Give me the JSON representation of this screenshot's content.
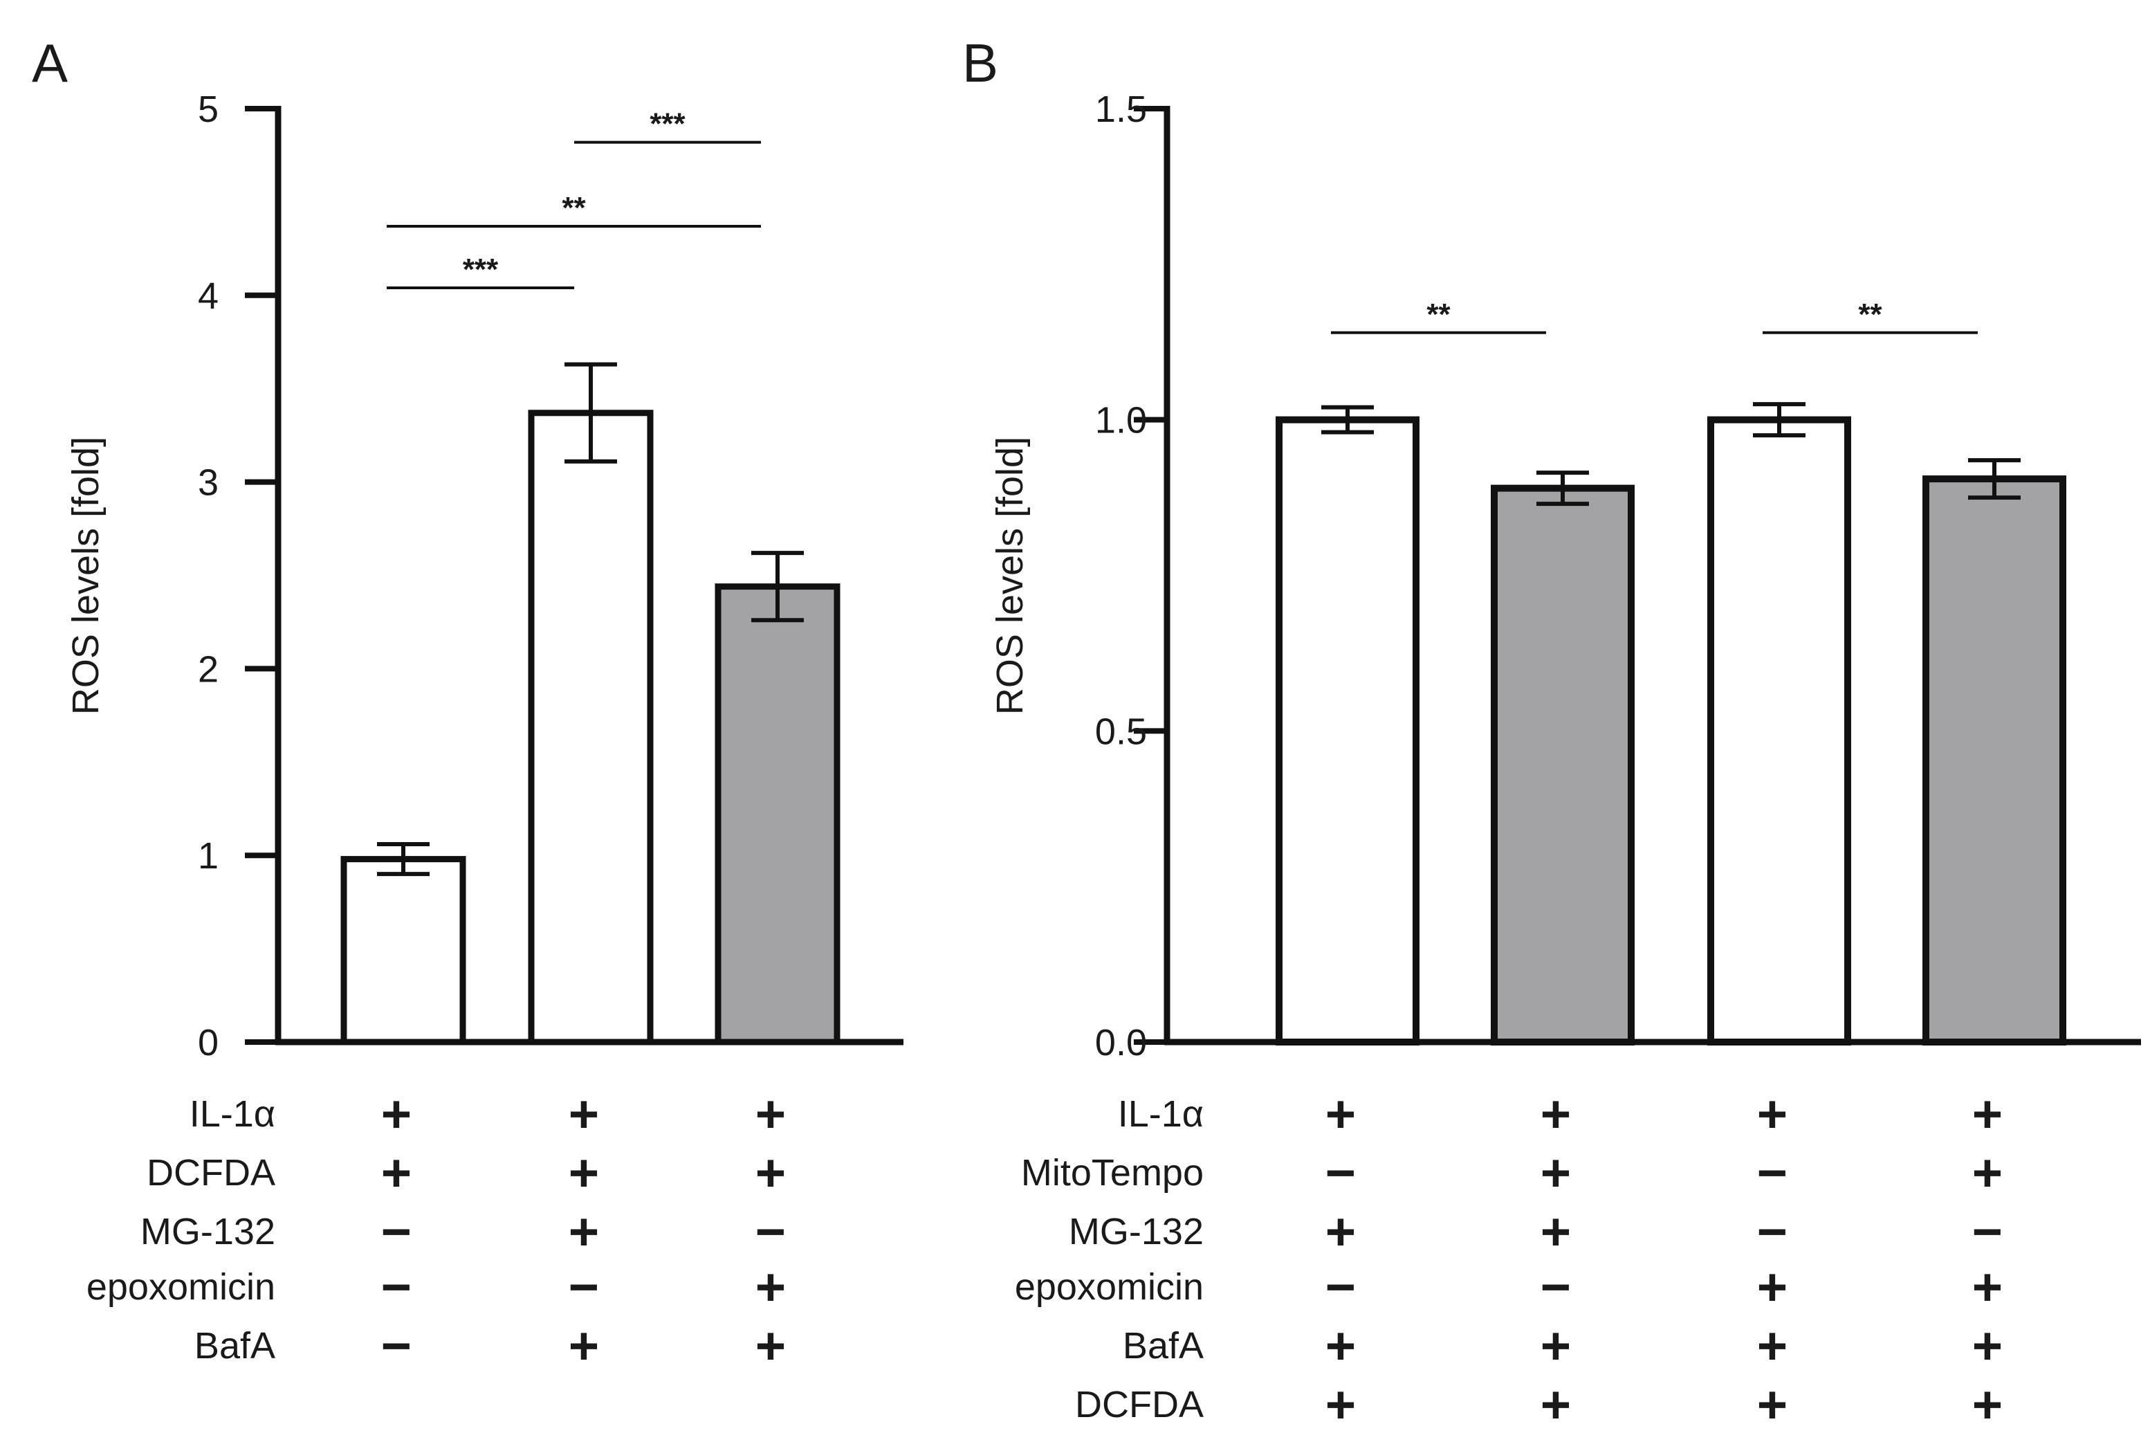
{
  "chart_data": [
    {
      "panel": "A",
      "type": "bar",
      "ylabel": "ROS levels  [fold]",
      "ylim": [
        0,
        5
      ],
      "yticks": [
        "0",
        "1",
        "2",
        "3",
        "4",
        "5"
      ],
      "bars": [
        {
          "value": 0.98,
          "error": 0.08,
          "color": "#ffffff"
        },
        {
          "value": 3.37,
          "error": 0.26,
          "color": "#ffffff"
        },
        {
          "value": 2.44,
          "error": 0.18,
          "color": "#a3a3a6"
        }
      ],
      "significance": [
        {
          "from": 0,
          "to": 1,
          "label": "***",
          "y": 4.04
        },
        {
          "from": 0,
          "to": 2,
          "label": "**",
          "y": 4.37
        },
        {
          "from": 1,
          "to": 2,
          "label": "***",
          "y": 4.82
        }
      ],
      "treatments": [
        {
          "label": "IL-1α",
          "values": [
            "+",
            "+",
            "+"
          ]
        },
        {
          "label": "DCFDA",
          "values": [
            "+",
            "+",
            "+"
          ]
        },
        {
          "label": "MG-132",
          "values": [
            "−",
            "+",
            "−"
          ]
        },
        {
          "label": "epoxomicin",
          "values": [
            "−",
            "−",
            "+"
          ]
        },
        {
          "label": "BafA",
          "values": [
            "−",
            "+",
            "+"
          ]
        }
      ]
    },
    {
      "panel": "B",
      "type": "bar",
      "ylabel": "ROS levels [fold]",
      "ylim": [
        0,
        1.5
      ],
      "yticks": [
        "0.0",
        "0.5",
        "1.0",
        "1.5"
      ],
      "bars": [
        {
          "value": 1.0,
          "error": 0.02,
          "color": "#ffffff"
        },
        {
          "value": 0.89,
          "error": 0.025,
          "color": "#a3a3a6"
        },
        {
          "value": 1.0,
          "error": 0.025,
          "color": "#ffffff"
        },
        {
          "value": 0.905,
          "error": 0.03,
          "color": "#a3a3a6"
        }
      ],
      "significance": [
        {
          "from": 0,
          "to": 1,
          "label": "**",
          "y": 1.14
        },
        {
          "from": 2,
          "to": 3,
          "label": "**",
          "y": 1.14
        }
      ],
      "treatments": [
        {
          "label": "IL-1α",
          "values": [
            "+",
            "+",
            "+",
            "+"
          ]
        },
        {
          "label": "MitoTempo",
          "values": [
            "−",
            "+",
            "−",
            "+"
          ]
        },
        {
          "label": "MG-132",
          "values": [
            "+",
            "+",
            "−",
            "−"
          ]
        },
        {
          "label": "epoxomicin",
          "values": [
            "−",
            "−",
            "+",
            "+"
          ]
        },
        {
          "label": "BafA",
          "values": [
            "+",
            "+",
            "+",
            "+"
          ]
        },
        {
          "label": "DCFDA",
          "values": [
            "+",
            "+",
            "+",
            "+"
          ]
        }
      ]
    }
  ]
}
